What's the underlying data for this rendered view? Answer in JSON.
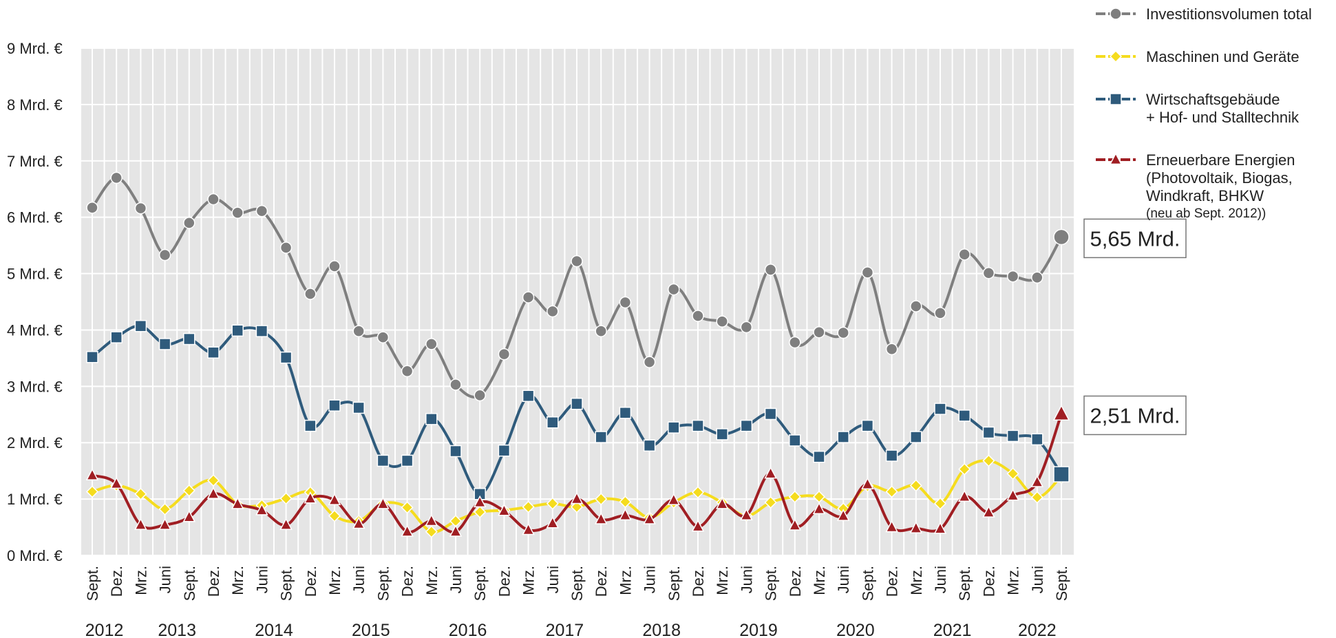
{
  "chart_data": {
    "type": "line",
    "categories": [
      "Sept.",
      "Dez.",
      "Mrz.",
      "Juni",
      "Sept.",
      "Dez.",
      "Mrz.",
      "Juni",
      "Sept.",
      "Dez.",
      "Mrz.",
      "Juni",
      "Sept.",
      "Dez.",
      "Mrz.",
      "Juni",
      "Sept.",
      "Dez.",
      "Mrz.",
      "Juni",
      "Sept.",
      "Dez.",
      "Mrz.",
      "Juni",
      "Sept.",
      "Dez.",
      "Mrz.",
      "Juni",
      "Sept.",
      "Dez.",
      "Mrz.",
      "Juni",
      "Sept.",
      "Dez.",
      "Mrz.",
      "Juni",
      "Sept.",
      "Dez.",
      "Mrz.",
      "Juni",
      "Sept."
    ],
    "year_labels": [
      "2012",
      "2013",
      "2014",
      "2015",
      "2016",
      "2017",
      "2018",
      "2019",
      "2020",
      "2021",
      "2022"
    ],
    "ylim": [
      0,
      9
    ],
    "yticks": [
      {
        "value": 0,
        "label": "0 Mrd. €"
      },
      {
        "value": 1,
        "label": "1 Mrd. €"
      },
      {
        "value": 2,
        "label": "2 Mrd. €"
      },
      {
        "value": 3,
        "label": "3 Mrd. €"
      },
      {
        "value": 4,
        "label": "4 Mrd. €"
      },
      {
        "value": 5,
        "label": "5 Mrd. €"
      },
      {
        "value": 6,
        "label": "6 Mrd. €"
      },
      {
        "value": 7,
        "label": "7 Mrd. €"
      },
      {
        "value": 8,
        "label": "8 Mrd. €"
      },
      {
        "value": 9,
        "label": "9 Mrd. €"
      }
    ],
    "grid": true,
    "smooth": true,
    "legend_position": "right",
    "legend_note": "(neu ab Sept. 2012))",
    "series": [
      {
        "name": "Investitionsvolumen total",
        "color": "#7f7f7f",
        "marker": "circle",
        "values": [
          6.17,
          6.7,
          6.16,
          5.33,
          5.9,
          6.32,
          6.08,
          6.11,
          5.46,
          4.64,
          5.13,
          3.98,
          3.87,
          3.27,
          3.75,
          3.03,
          2.84,
          3.57,
          4.58,
          4.33,
          5.22,
          3.98,
          4.49,
          3.43,
          4.72,
          4.25,
          4.15,
          4.05,
          5.07,
          3.78,
          3.96,
          3.95,
          5.02,
          3.66,
          4.42,
          4.3,
          5.34,
          5.01,
          4.95,
          4.93,
          5.65
        ],
        "value_labels": [
          null,
          null,
          null,
          null,
          null,
          null,
          null,
          null,
          null,
          null,
          null,
          null,
          null,
          null,
          null,
          null,
          null,
          null,
          null,
          null,
          null,
          null,
          null,
          null,
          null,
          null,
          null,
          null,
          null,
          null,
          null,
          null,
          null,
          null,
          null,
          null,
          null,
          null,
          null,
          null,
          "5,65 Mrd."
        ]
      },
      {
        "name": "Maschinen und Geräte",
        "color": "#f5dc1e",
        "marker": "diamond",
        "values": [
          1.13,
          1.24,
          1.09,
          0.82,
          1.15,
          1.33,
          0.91,
          0.89,
          1.01,
          1.12,
          0.7,
          0.61,
          0.92,
          0.85,
          0.42,
          0.61,
          0.77,
          0.8,
          0.86,
          0.92,
          0.86,
          1.0,
          0.95,
          0.67,
          0.94,
          1.12,
          0.94,
          0.7,
          0.94,
          1.04,
          1.04,
          0.83,
          1.23,
          1.13,
          1.24,
          0.92,
          1.53,
          1.68,
          1.45,
          1.03,
          1.41
        ]
      },
      {
        "name": "Wirtschaftsgebäude\n+ Hof- und Stalltechnik",
        "color": "#2f5b7c",
        "marker": "square",
        "values": [
          3.52,
          3.87,
          4.07,
          3.75,
          3.84,
          3.6,
          3.99,
          3.98,
          3.51,
          2.3,
          2.66,
          2.62,
          1.68,
          1.68,
          2.42,
          1.85,
          1.09,
          1.86,
          2.83,
          2.36,
          2.69,
          2.1,
          2.53,
          1.95,
          2.27,
          2.3,
          2.15,
          2.3,
          2.51,
          2.04,
          1.75,
          2.1,
          2.3,
          1.77,
          2.1,
          2.6,
          2.48,
          2.18,
          2.12,
          2.06,
          1.44
        ]
      },
      {
        "name": "Erneuerbare Energien\n(Photovoltaik, Biogas,\nWindkraft, BHKW",
        "color": "#a01e23",
        "marker": "triangle",
        "values": [
          1.42,
          1.27,
          0.54,
          0.54,
          0.68,
          1.09,
          0.91,
          0.8,
          0.54,
          1.01,
          0.98,
          0.56,
          0.91,
          0.42,
          0.61,
          0.42,
          0.94,
          0.79,
          0.45,
          0.57,
          1.0,
          0.64,
          0.71,
          0.64,
          0.98,
          0.51,
          0.91,
          0.71,
          1.45,
          0.53,
          0.82,
          0.7,
          1.26,
          0.5,
          0.48,
          0.47,
          1.04,
          0.76,
          1.06,
          1.3,
          2.51
        ],
        "value_labels": [
          null,
          null,
          null,
          null,
          null,
          null,
          null,
          null,
          null,
          null,
          null,
          null,
          null,
          null,
          null,
          null,
          null,
          null,
          null,
          null,
          null,
          null,
          null,
          null,
          null,
          null,
          null,
          null,
          null,
          null,
          null,
          null,
          null,
          null,
          null,
          null,
          null,
          null,
          null,
          null,
          "2,51 Mrd."
        ]
      }
    ]
  }
}
